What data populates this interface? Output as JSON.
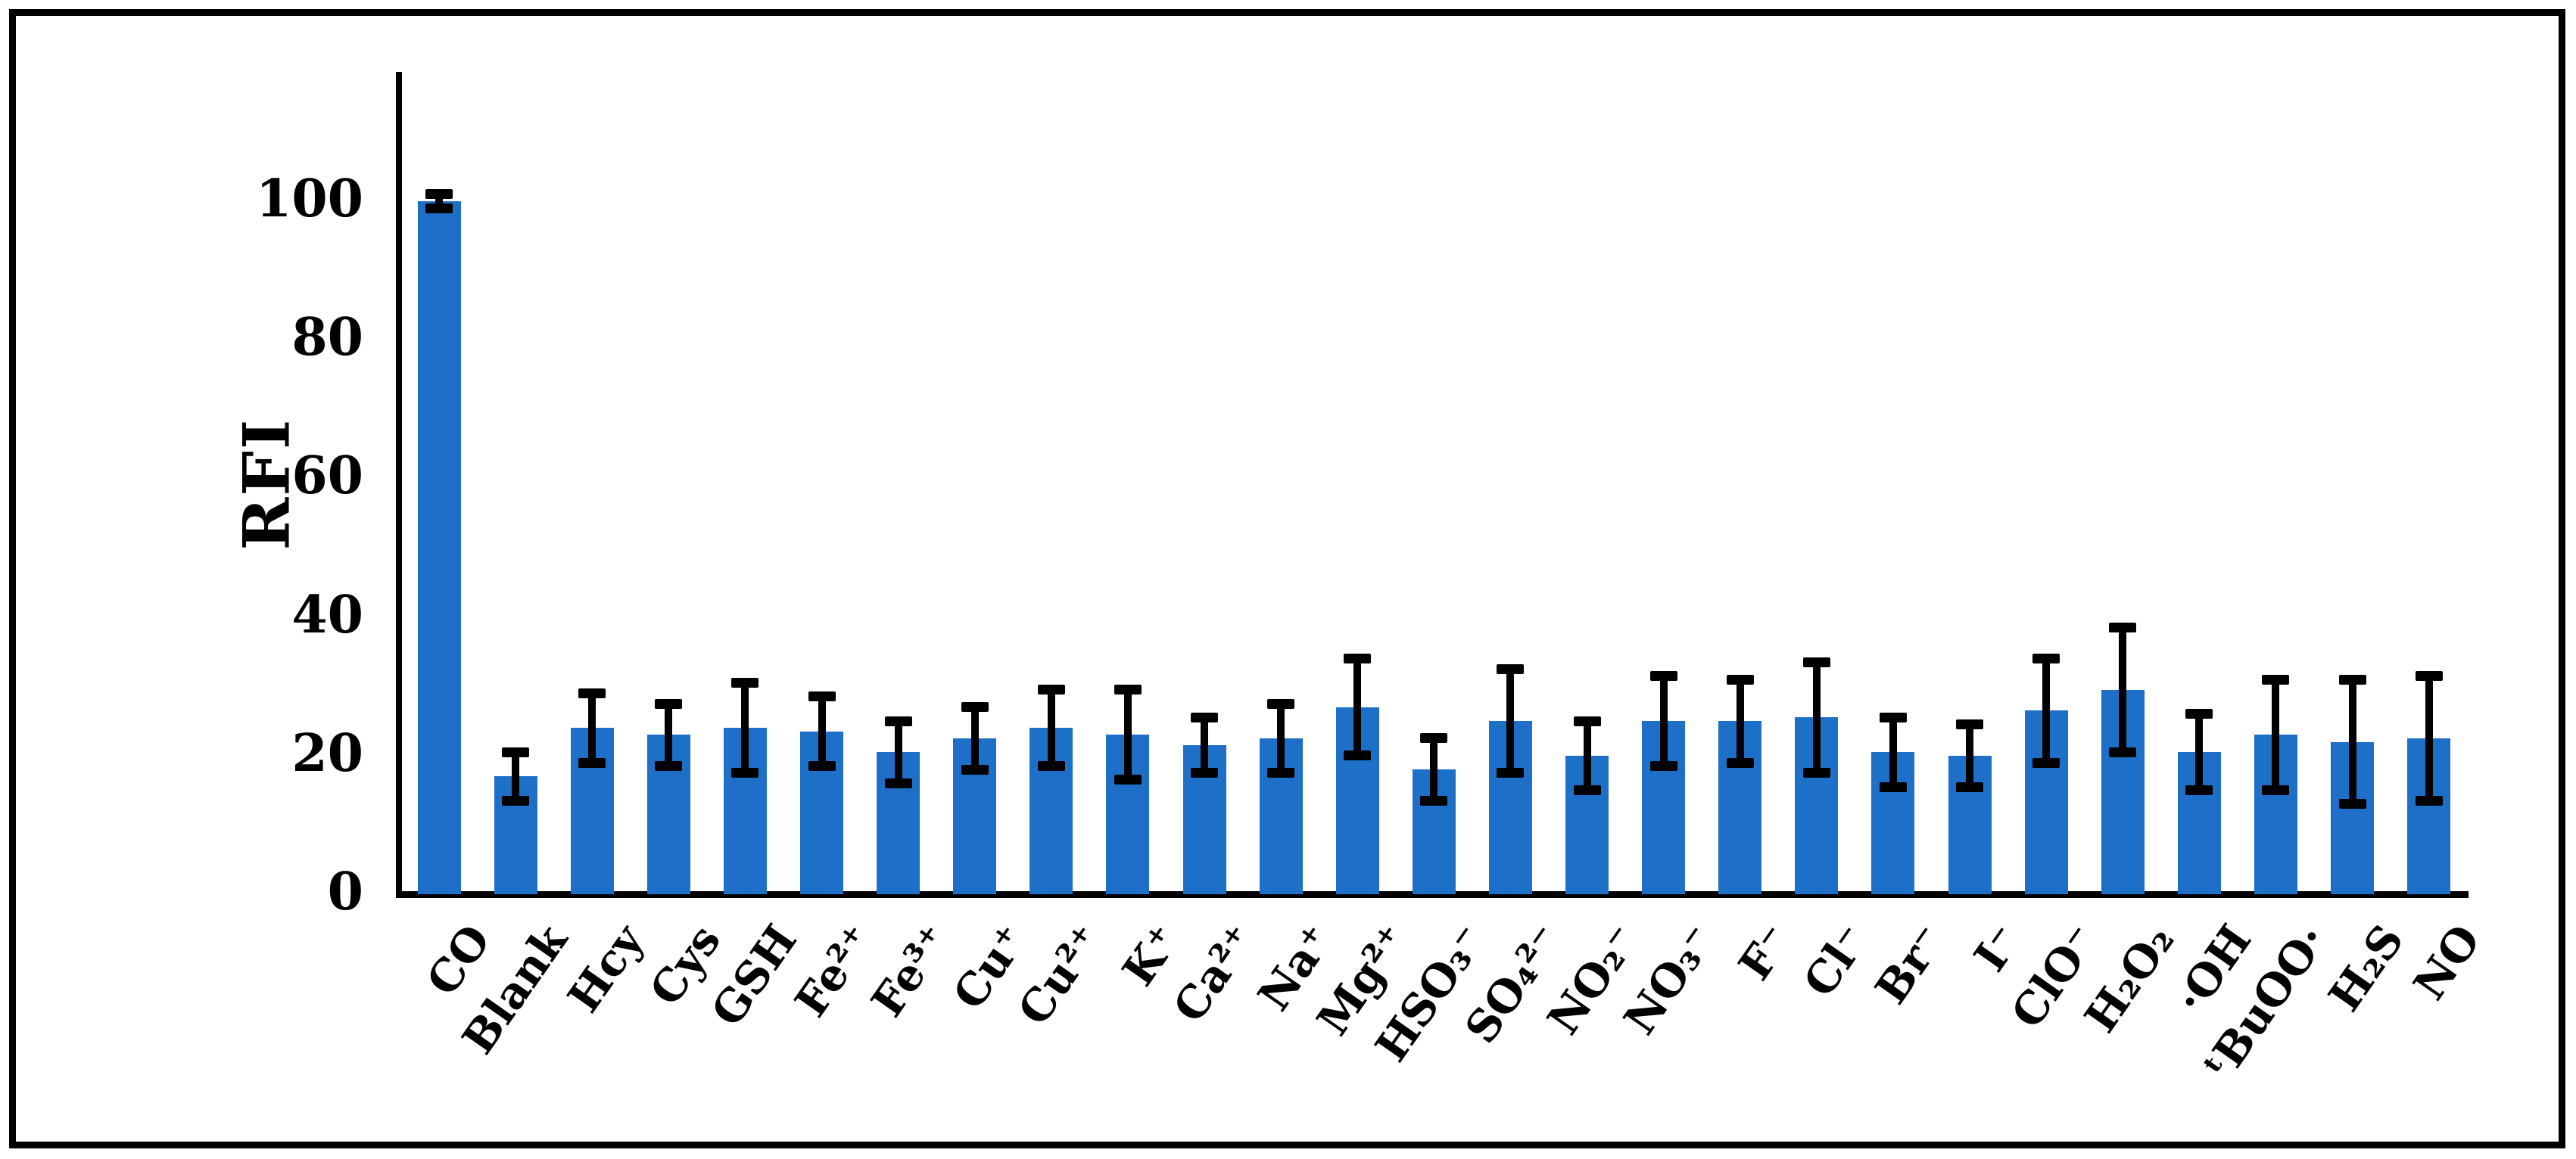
{
  "figure": {
    "background_color": "#ffffff",
    "border_color": "#000000"
  },
  "chart_data": {
    "type": "bar",
    "title": "",
    "xlabel": "",
    "ylabel": "RFI",
    "ylim": [
      0,
      119
    ],
    "yticks": [
      0,
      20,
      40,
      60,
      80,
      100
    ],
    "grid": false,
    "legend": null,
    "bar_color": "#1D6FC8",
    "error_bar_color": "#000000",
    "axis_color": "#000000",
    "categories": [
      "CO",
      "Blank",
      "Hcy",
      "Cys",
      "GSH",
      "Fe²⁺",
      "Fe³⁺",
      "Cu⁺",
      "Cu²⁺",
      "K⁺",
      "Ca²⁺",
      "Na⁺",
      "Mg²⁺",
      "HSO₃⁻",
      "SO₄²⁻",
      "NO₂⁻",
      "NO₃⁻",
      "F⁻",
      "Cl⁻",
      "Br⁻",
      "I⁻",
      "ClO⁻",
      "H₂O₂",
      "·OH",
      "ᵗBuOO·",
      "H₂S",
      "NO"
    ],
    "values": [
      100,
      17,
      24,
      23,
      24,
      23.5,
      20.5,
      22.5,
      24,
      23,
      21.5,
      22.5,
      27,
      18,
      25,
      20,
      25,
      25,
      25.5,
      20.5,
      20,
      26.5,
      29.5,
      20.5,
      23,
      22,
      22.5
    ],
    "errors": [
      1,
      3.5,
      5,
      4.5,
      6.5,
      5,
      4.5,
      4.5,
      5.5,
      6.5,
      4,
      5,
      7,
      4.5,
      7.5,
      5,
      6.5,
      6,
      8,
      5,
      4.5,
      7.5,
      9,
      5.5,
      8,
      9,
      9
    ]
  }
}
